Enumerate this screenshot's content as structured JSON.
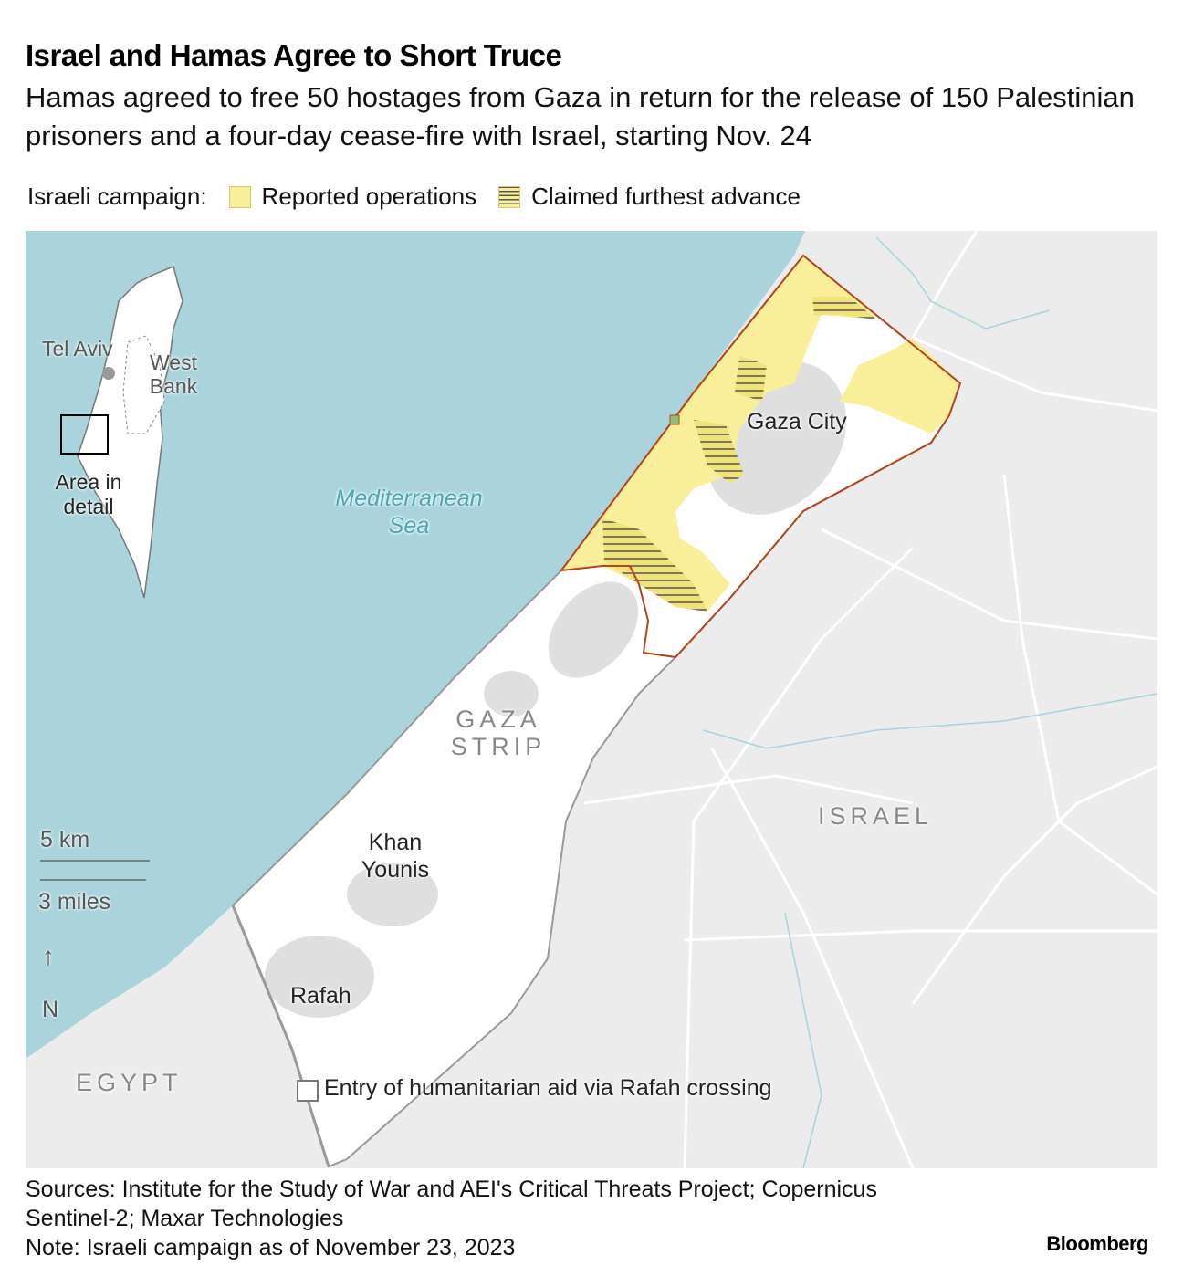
{
  "title": "Israel and Hamas Agree to Short Truce",
  "subtitle": "Hamas agreed to free 50 hostages from Gaza in return for the release of 150 Palestinian prisoners and a four-day cease-fire with Israel, starting Nov. 24",
  "legend": {
    "heading": "Israeli campaign:",
    "items": [
      {
        "label": "Reported operations",
        "color": "#f9ef9b",
        "pattern": "solid"
      },
      {
        "label": "Claimed furthest advance",
        "color": "#f9ef9b",
        "pattern": "hatched"
      }
    ]
  },
  "map": {
    "colors": {
      "sea": "#aad3dc",
      "land": "#ececec",
      "gaza": "#ffffff",
      "border": "#b5451b"
    },
    "labels": {
      "gaza_city": "Gaza City",
      "mediterranean": "Mediterranean Sea",
      "gaza_strip": "GAZA STRIP",
      "khan_younis": "Khan Younis",
      "rafah": "Rafah",
      "israel": "ISRAEL",
      "egypt": "EGYPT",
      "rafah_crossing": "Entry of humanitarian aid via Rafah crossing"
    },
    "inset": {
      "tel_aviv": "Tel Aviv",
      "west_bank": "West Bank",
      "area_detail": "Area in detail"
    },
    "scale": {
      "km": "5 km",
      "miles": "3 miles"
    },
    "north": {
      "arrow": "↑",
      "label": "N"
    }
  },
  "footer": {
    "sources": "Sources: Institute for the Study of War and AEI's Critical Threats Project; Copernicus Sentinel-2; Maxar Technologies",
    "note": "Note: Israeli campaign as of November 23, 2023",
    "brand": "Bloomberg"
  }
}
